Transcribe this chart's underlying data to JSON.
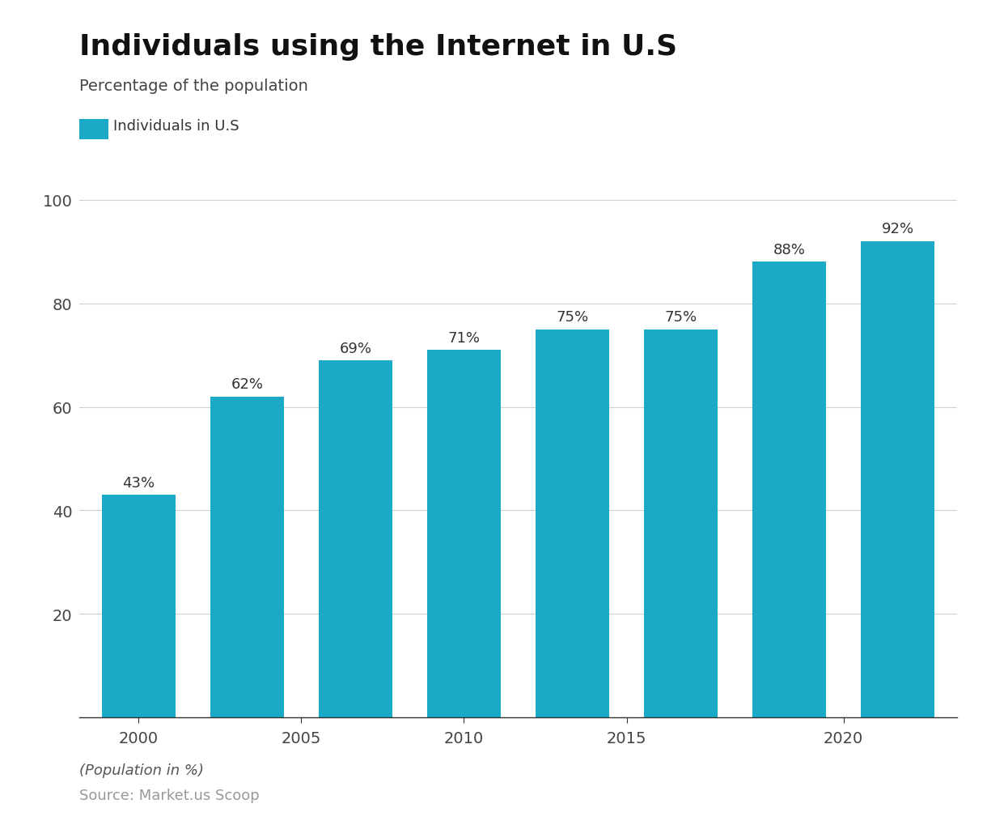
{
  "title": "Individuals using the Internet in U.S",
  "subtitle": "Percentage of the population",
  "legend_label": "Individuals in U.S",
  "footer_italic": "(Population in %)",
  "footer_source": "Source: Market.us Scoop",
  "bar_color": "#1AAAC8",
  "background_color": "#ffffff",
  "values": [
    43,
    62,
    69,
    71,
    75,
    75,
    88,
    92
  ],
  "labels": [
    "43%",
    "62%",
    "69%",
    "71%",
    "75%",
    "75%",
    "88%",
    "92%"
  ],
  "x_positions": [
    0,
    1,
    2,
    3,
    4,
    5,
    6,
    7
  ],
  "bar_width": 0.68,
  "xtick_positions": [
    0,
    1.5,
    3,
    4.5,
    6.5
  ],
  "xtick_labels": [
    "2000",
    "2005",
    "2010",
    "2015",
    "2020"
  ],
  "yticks": [
    0,
    20,
    40,
    60,
    80,
    100
  ],
  "ylim": [
    0,
    110
  ],
  "xlim": [
    -0.55,
    7.55
  ],
  "title_fontsize": 26,
  "subtitle_fontsize": 14,
  "legend_fontsize": 13,
  "bar_label_fontsize": 13,
  "tick_fontsize": 14,
  "footer_fontsize": 13,
  "source_fontsize": 13
}
